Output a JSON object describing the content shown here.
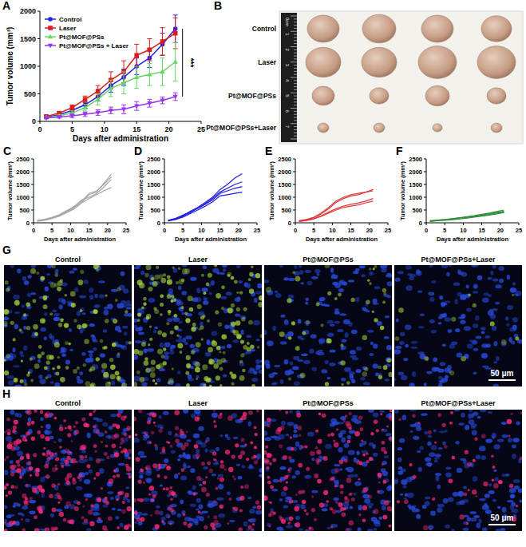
{
  "chart_data": [
    {
      "type": "line",
      "panel_label": "A",
      "x": [
        1,
        3,
        5,
        7,
        9,
        11,
        13,
        15,
        17,
        19,
        21
      ],
      "xlim": [
        0,
        25
      ],
      "xticks": [
        0,
        5,
        10,
        15,
        20,
        25
      ],
      "ylim": [
        0,
        2000
      ],
      "yticks": [
        0,
        500,
        1000,
        1500,
        2000
      ],
      "x_label": "Days after administration",
      "y_label": "Tumor volume (mm³)",
      "legend": "top-left",
      "annotations": [
        {
          "text": "***"
        }
      ],
      "series": [
        {
          "name": "Control",
          "color": "#2323e0",
          "marker": "circle",
          "values": [
            80,
            120,
            200,
            300,
            450,
            650,
            800,
            1000,
            1150,
            1400,
            1680
          ],
          "errors": [
            20,
            30,
            40,
            60,
            80,
            120,
            150,
            150,
            170,
            200,
            250
          ]
        },
        {
          "name": "Laser",
          "color": "#dd1c1c",
          "marker": "square",
          "values": [
            90,
            150,
            250,
            400,
            550,
            750,
            900,
            1200,
            1300,
            1450,
            1600
          ],
          "errors": [
            20,
            30,
            50,
            60,
            100,
            150,
            200,
            200,
            200,
            250,
            280
          ]
        },
        {
          "name": "Pt@MOF@PSs",
          "color": "#66d466",
          "marker": "triangle",
          "values": [
            70,
            100,
            150,
            250,
            400,
            600,
            700,
            800,
            850,
            900,
            1080
          ],
          "errors": [
            15,
            20,
            40,
            60,
            100,
            150,
            200,
            200,
            200,
            250,
            350
          ]
        },
        {
          "name": "Pt@MOF@PSs + Laser",
          "color": "#9933ee",
          "marker": "triangle-down",
          "values": [
            60,
            80,
            100,
            130,
            160,
            200,
            220,
            280,
            330,
            380,
            450
          ],
          "errors": [
            10,
            20,
            30,
            40,
            50,
            60,
            80,
            80,
            70,
            60,
            70
          ]
        }
      ]
    },
    {
      "type": "line",
      "panel_label": "C",
      "x": [
        1,
        3,
        5,
        7,
        9,
        11,
        13,
        15,
        17,
        19,
        21
      ],
      "xlim": [
        0,
        25
      ],
      "xticks": [
        0,
        5,
        10,
        15,
        20,
        25
      ],
      "ylim": [
        0,
        2500
      ],
      "yticks": [
        0,
        500,
        1000,
        1500,
        2000,
        2500
      ],
      "x_label": "Days after administration",
      "y_label": "Tumor volume (mm³)",
      "series": [
        {
          "color": "#a6a6a6",
          "values": [
            80,
            120,
            200,
            300,
            420,
            600,
            800,
            1100,
            1200,
            1550,
            1900
          ]
        },
        {
          "color": "#a6a6a6",
          "values": [
            70,
            110,
            180,
            280,
            450,
            650,
            850,
            1150,
            1250,
            1500,
            1800
          ]
        },
        {
          "color": "#a6a6a6",
          "values": [
            90,
            140,
            220,
            320,
            480,
            620,
            900,
            1000,
            1150,
            1400,
            1700
          ]
        },
        {
          "color": "#a6a6a6",
          "values": [
            60,
            100,
            170,
            260,
            400,
            550,
            780,
            950,
            1100,
            1250,
            1380
          ]
        }
      ]
    },
    {
      "type": "line",
      "panel_label": "D",
      "x": [
        1,
        3,
        5,
        7,
        9,
        11,
        13,
        15,
        17,
        19,
        21
      ],
      "xlim": [
        0,
        25
      ],
      "xticks": [
        0,
        5,
        10,
        15,
        20,
        25
      ],
      "ylim": [
        0,
        2500
      ],
      "yticks": [
        0,
        500,
        1000,
        1500,
        2000,
        2500
      ],
      "x_label": "Days after administration",
      "y_label": "Tumor volume (mm³)",
      "series": [
        {
          "color": "#1c1ce0",
          "values": [
            90,
            160,
            280,
            450,
            600,
            800,
            1000,
            1300,
            1500,
            1750,
            1920
          ]
        },
        {
          "color": "#1c1ce0",
          "values": [
            80,
            140,
            250,
            400,
            580,
            750,
            950,
            1200,
            1350,
            1500,
            1600
          ]
        },
        {
          "color": "#1c1ce0",
          "values": [
            100,
            170,
            300,
            420,
            560,
            720,
            900,
            1150,
            1250,
            1350,
            1420
          ]
        },
        {
          "color": "#1c1ce0",
          "values": [
            70,
            130,
            220,
            360,
            500,
            650,
            820,
            1050,
            1100,
            1150,
            1200
          ]
        }
      ]
    },
    {
      "type": "line",
      "panel_label": "E",
      "x": [
        1,
        3,
        5,
        7,
        9,
        11,
        13,
        15,
        17,
        19,
        21
      ],
      "xlim": [
        0,
        25
      ],
      "xticks": [
        0,
        5,
        10,
        15,
        20,
        25
      ],
      "ylim": [
        0,
        2500
      ],
      "yticks": [
        0,
        500,
        1000,
        1500,
        2000,
        2500
      ],
      "x_label": "Days after administration",
      "y_label": "Tumor volume (mm³)",
      "series": [
        {
          "color": "#e0383a",
          "values": [
            70,
            120,
            200,
            350,
            550,
            800,
            950,
            1050,
            1100,
            1200,
            1300
          ]
        },
        {
          "color": "#e0383a",
          "values": [
            80,
            130,
            220,
            380,
            600,
            850,
            1000,
            1100,
            1150,
            1200,
            1250
          ]
        },
        {
          "color": "#e0383a",
          "values": [
            60,
            100,
            160,
            280,
            420,
            550,
            650,
            720,
            780,
            850,
            950
          ]
        },
        {
          "color": "#e0383a",
          "values": [
            50,
            90,
            150,
            250,
            380,
            500,
            600,
            650,
            700,
            780,
            850
          ]
        }
      ]
    },
    {
      "type": "line",
      "panel_label": "F",
      "x": [
        1,
        3,
        5,
        7,
        9,
        11,
        13,
        15,
        17,
        19,
        21
      ],
      "xlim": [
        0,
        25
      ],
      "xticks": [
        0,
        5,
        10,
        15,
        20,
        25
      ],
      "ylim": [
        0,
        2500
      ],
      "yticks": [
        0,
        500,
        1000,
        1500,
        2000,
        2500
      ],
      "x_label": "Days after administration",
      "y_label": "Tumor volume (mm³)",
      "series": [
        {
          "color": "#2f8f3a",
          "values": [
            70,
            100,
            120,
            160,
            200,
            240,
            280,
            330,
            380,
            440,
            500
          ]
        },
        {
          "color": "#2f8f3a",
          "values": [
            60,
            90,
            110,
            140,
            180,
            220,
            260,
            300,
            360,
            400,
            450
          ]
        },
        {
          "color": "#2f8f3a",
          "values": [
            80,
            110,
            130,
            150,
            190,
            210,
            250,
            280,
            330,
            380,
            420
          ]
        },
        {
          "color": "#2f8f3a",
          "values": [
            50,
            80,
            100,
            120,
            150,
            180,
            220,
            260,
            300,
            350,
            400
          ]
        }
      ]
    }
  ],
  "figure": {
    "panel_B": {
      "panel_label": "B",
      "rows": [
        "Control",
        "Laser",
        "Pt@MOF@PSs",
        "Pt@MOF@PSs+Laser"
      ],
      "ruler_labels": [
        "0cm",
        "1",
        "2",
        "3",
        "4",
        "5",
        "6",
        "7"
      ]
    },
    "panel_G": {
      "panel_label": "G",
      "columns": [
        "Control",
        "Laser",
        "Pt@MOF@PSs",
        "Pt@MOF@PSs+Laser"
      ],
      "scale_bar": "50 μm"
    },
    "panel_H": {
      "panel_label": "H",
      "columns": [
        "Control",
        "Laser",
        "Pt@MOF@PSs",
        "Pt@MOF@PSs+Laser"
      ],
      "scale_bar": "50 μm"
    }
  }
}
